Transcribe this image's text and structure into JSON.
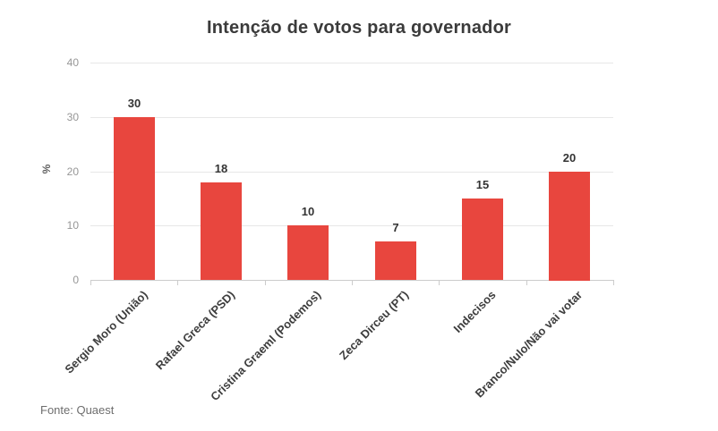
{
  "title": "Intenção de votos para governador",
  "source": "Fonte: Quaest",
  "colors": {
    "bar": "#e8463e",
    "title_text": "#3b3b3b",
    "value_label": "#333333",
    "category_label": "#3d3d3d",
    "tick_label": "#969696",
    "gridline": "#e7e7e7",
    "axis_line": "#cccccc",
    "source_text": "#6e6e6e",
    "background": "#ffffff"
  },
  "chart_data": {
    "type": "bar",
    "title": "Intenção de votos para governador",
    "categories": [
      "Sergio Moro (União)",
      "Rafael Greca (PSD)",
      "Cristina Graeml (Podemos)",
      "Zeca Dirceu (PT)",
      "Indecisos",
      "Branco/Nulo/Não vai votar"
    ],
    "values": [
      30,
      18,
      10,
      7,
      15,
      20
    ],
    "value_labels_shown": true,
    "xlabel": "",
    "ylabel": "%",
    "ylim": [
      0,
      40
    ],
    "yticks": [
      0,
      10,
      20,
      30,
      40
    ],
    "grid": true,
    "legend": "none",
    "bar_color": "#e8463e",
    "category_label_rotation_deg": -45,
    "source": "Fonte: Quaest"
  }
}
